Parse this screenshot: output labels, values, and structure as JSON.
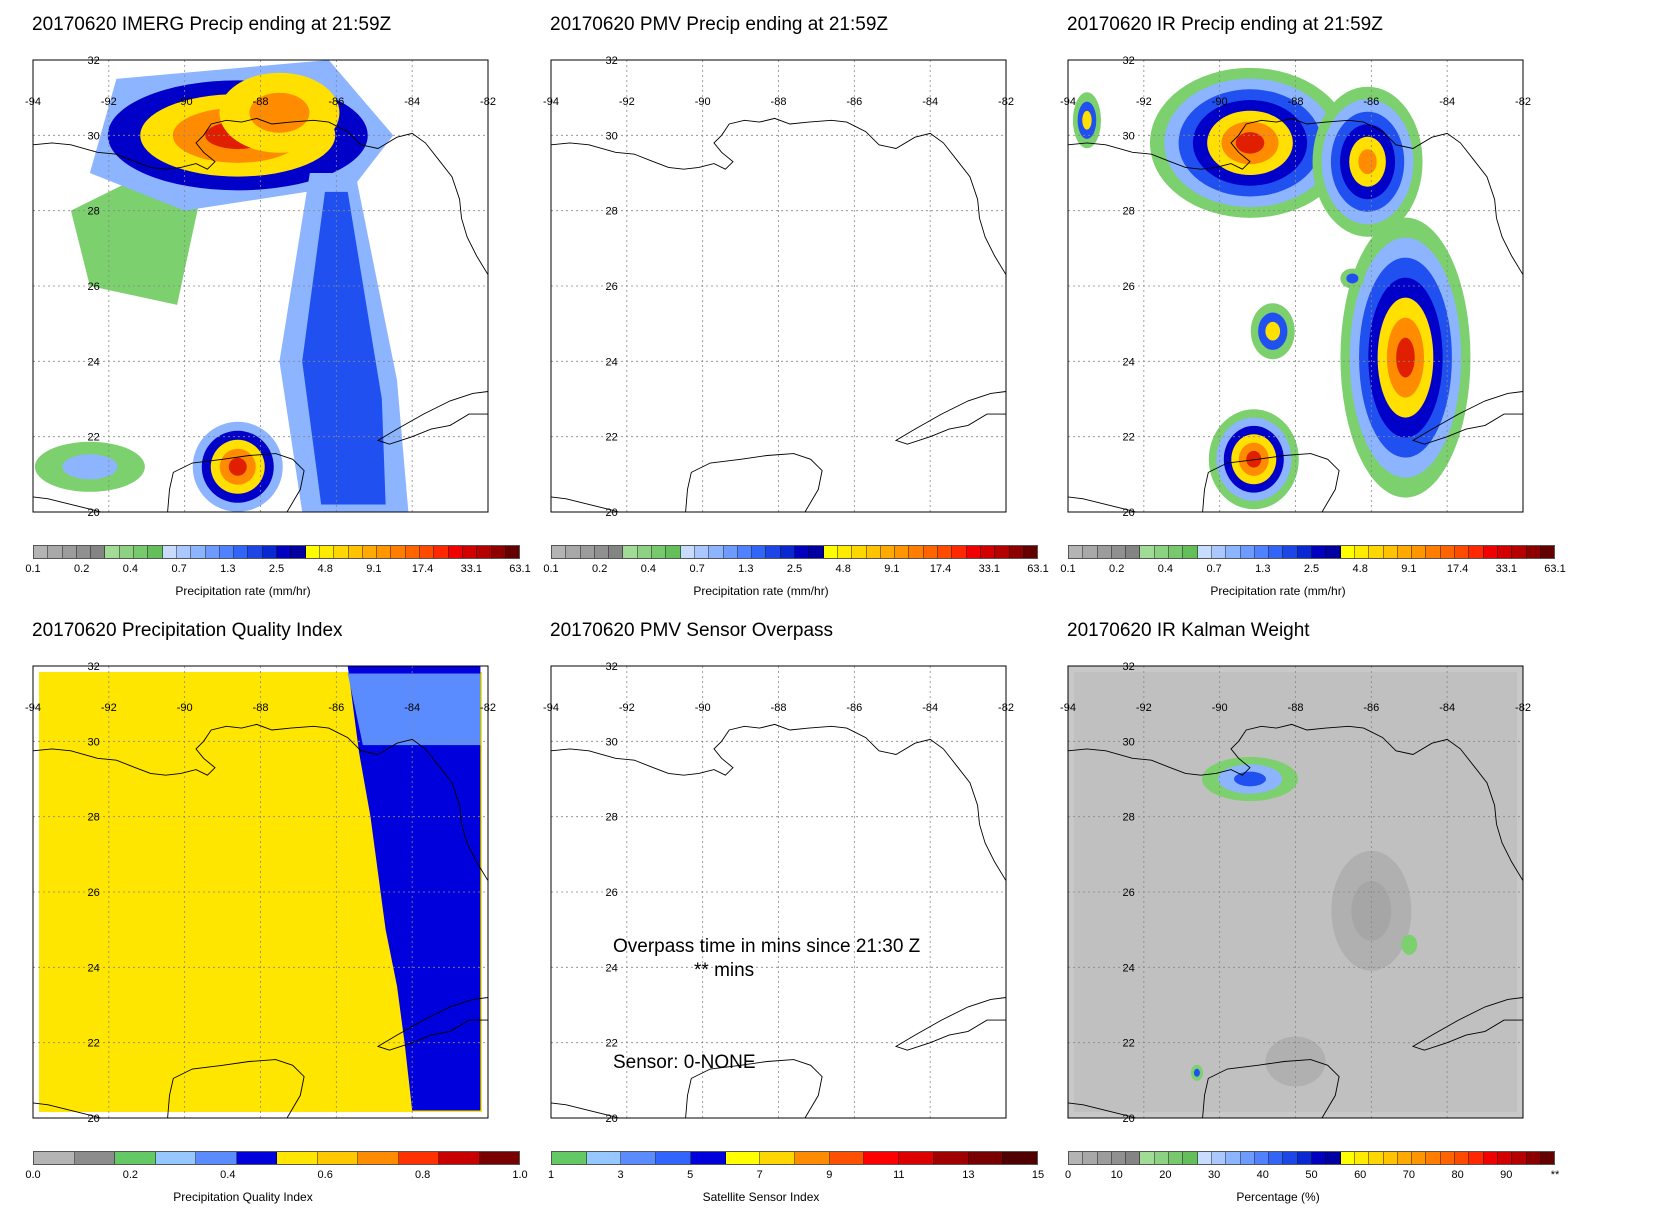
{
  "panels": [
    {
      "id": "imerg",
      "title": "20170620 IMERG Precip ending at 21:59Z",
      "layer": "precip-imerg",
      "colorbar": "precip"
    },
    {
      "id": "pmv",
      "title": "20170620 PMV Precip ending at 21:59Z",
      "layer": "none",
      "colorbar": "precip"
    },
    {
      "id": "ir",
      "title": "20170620 IR Precip ending at 21:59Z",
      "layer": "precip-ir",
      "colorbar": "precip"
    },
    {
      "id": "pqi",
      "title": "20170620 Precipitation Quality Index",
      "layer": "quality",
      "colorbar": "quality"
    },
    {
      "id": "overpass",
      "title": "20170620 PMV Sensor Overpass",
      "layer": "none",
      "colorbar": "sensor",
      "notes": {
        "overpass_line1": "Overpass time in mins since 21:30 Z",
        "overpass_line2": "** mins",
        "sensor": "Sensor:   0-NONE"
      }
    },
    {
      "id": "kalman",
      "title": "20170620 IR Kalman Weight",
      "layer": "kalman",
      "colorbar": "percent"
    }
  ],
  "map": {
    "lon_labels": [
      "-94",
      "-92",
      "-90",
      "-88",
      "-86",
      "-84",
      "-82"
    ],
    "lat_labels": [
      "32",
      "30",
      "28",
      "26",
      "24",
      "22",
      "20"
    ]
  },
  "colorbars": {
    "precip": {
      "label": "Precipitation rate (mm/hr)",
      "ticks": [
        "0.1",
        "0.2",
        "0.4",
        "0.7",
        "1.3",
        "2.5",
        "4.8",
        "9.1",
        "17.4",
        "33.1",
        "63.1"
      ],
      "colors": [
        "#b4b4b4",
        "#a8a8a8",
        "#9c9c9c",
        "#909090",
        "#848484",
        "#a0dc96",
        "#8cd282",
        "#78c86e",
        "#64be5a",
        "#c8dcff",
        "#aac8ff",
        "#8cb4ff",
        "#6e9bff",
        "#5082ff",
        "#3264f5",
        "#1e46e6",
        "#0a28d2",
        "#0000be",
        "#0000a0",
        "#ffff00",
        "#ffeb00",
        "#ffd700",
        "#ffc300",
        "#ffaa00",
        "#ff9600",
        "#ff7d00",
        "#ff6400",
        "#ff4b00",
        "#ff2800",
        "#f00000",
        "#d20000",
        "#b40000",
        "#8c0000",
        "#640000"
      ]
    },
    "quality": {
      "label": "Precipitation Quality Index",
      "ticks": [
        "0.0",
        "0.2",
        "0.4",
        "0.6",
        "0.8",
        "1.0"
      ],
      "colors": [
        "#b4b4b4",
        "#8c8c8c",
        "#64c864",
        "#96c8ff",
        "#5a8cff",
        "#0000dc",
        "#ffe600",
        "#ffc800",
        "#ff8c00",
        "#ff3200",
        "#c80000",
        "#780000"
      ]
    },
    "sensor": {
      "label": "Satellite Sensor Index",
      "ticks": [
        "1",
        "3",
        "5",
        "7",
        "9",
        "11",
        "13",
        "15"
      ],
      "colors": [
        "#64c864",
        "#96c8ff",
        "#5a8cff",
        "#3264ff",
        "#0000dc",
        "#ffff00",
        "#ffd700",
        "#ff8c00",
        "#ff5000",
        "#ff0000",
        "#dc0000",
        "#a00000",
        "#780000",
        "#500000"
      ]
    },
    "percent": {
      "label": "Percentage (%)",
      "ticks": [
        "0",
        "10",
        "20",
        "30",
        "40",
        "50",
        "60",
        "70",
        "80",
        "90",
        "**"
      ],
      "colors": [
        "#b4b4b4",
        "#a8a8a8",
        "#9c9c9c",
        "#909090",
        "#848484",
        "#a0dc96",
        "#8cd282",
        "#78c86e",
        "#64be5a",
        "#c8dcff",
        "#aac8ff",
        "#8cb4ff",
        "#6e9bff",
        "#5082ff",
        "#3264f5",
        "#1e46e6",
        "#0a28d2",
        "#0000be",
        "#0000a0",
        "#ffff00",
        "#ffeb00",
        "#ffd700",
        "#ffc300",
        "#ffaa00",
        "#ff9600",
        "#ff7d00",
        "#ff6400",
        "#ff4b00",
        "#ff2800",
        "#f00000",
        "#d20000",
        "#b40000",
        "#8c0000",
        "#640000"
      ]
    }
  }
}
